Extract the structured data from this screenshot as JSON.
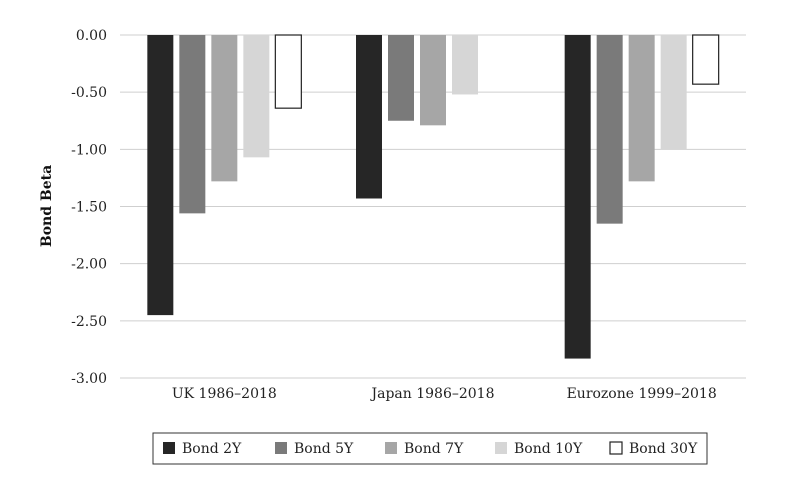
{
  "chart_data": {
    "type": "bar",
    "ylabel": "Bond Beta",
    "xlabel": "",
    "ylim": [
      -3.0,
      0.0
    ],
    "yticks": [
      "0.00",
      "-0.50",
      "-1.00",
      "-1.50",
      "-2.00",
      "-2.50",
      "-3.00"
    ],
    "ytick_values": [
      0,
      -0.5,
      -1.0,
      -1.5,
      -2.0,
      -2.5,
      -3.0
    ],
    "grid": true,
    "legend_position": "bottom",
    "categories": [
      "UK 1986–2018",
      "Japan 1986–2018",
      "Eurozone 1999–2018"
    ],
    "series": [
      {
        "name": "Bond 2Y",
        "color": "#262626",
        "values": [
          -2.45,
          -1.43,
          -2.83
        ]
      },
      {
        "name": "Bond 5Y",
        "color": "#7a7a7a",
        "values": [
          -1.56,
          -0.75,
          -1.65
        ]
      },
      {
        "name": "Bond 7Y",
        "color": "#a6a6a6",
        "values": [
          -1.28,
          -0.79,
          -1.28
        ]
      },
      {
        "name": "Bond 10Y",
        "color": "#d6d6d6",
        "values": [
          -1.07,
          -0.52,
          -1.0
        ]
      },
      {
        "name": "Bond 30Y",
        "color": "#ffffff",
        "values": [
          -0.64,
          null,
          -0.43
        ]
      }
    ]
  }
}
